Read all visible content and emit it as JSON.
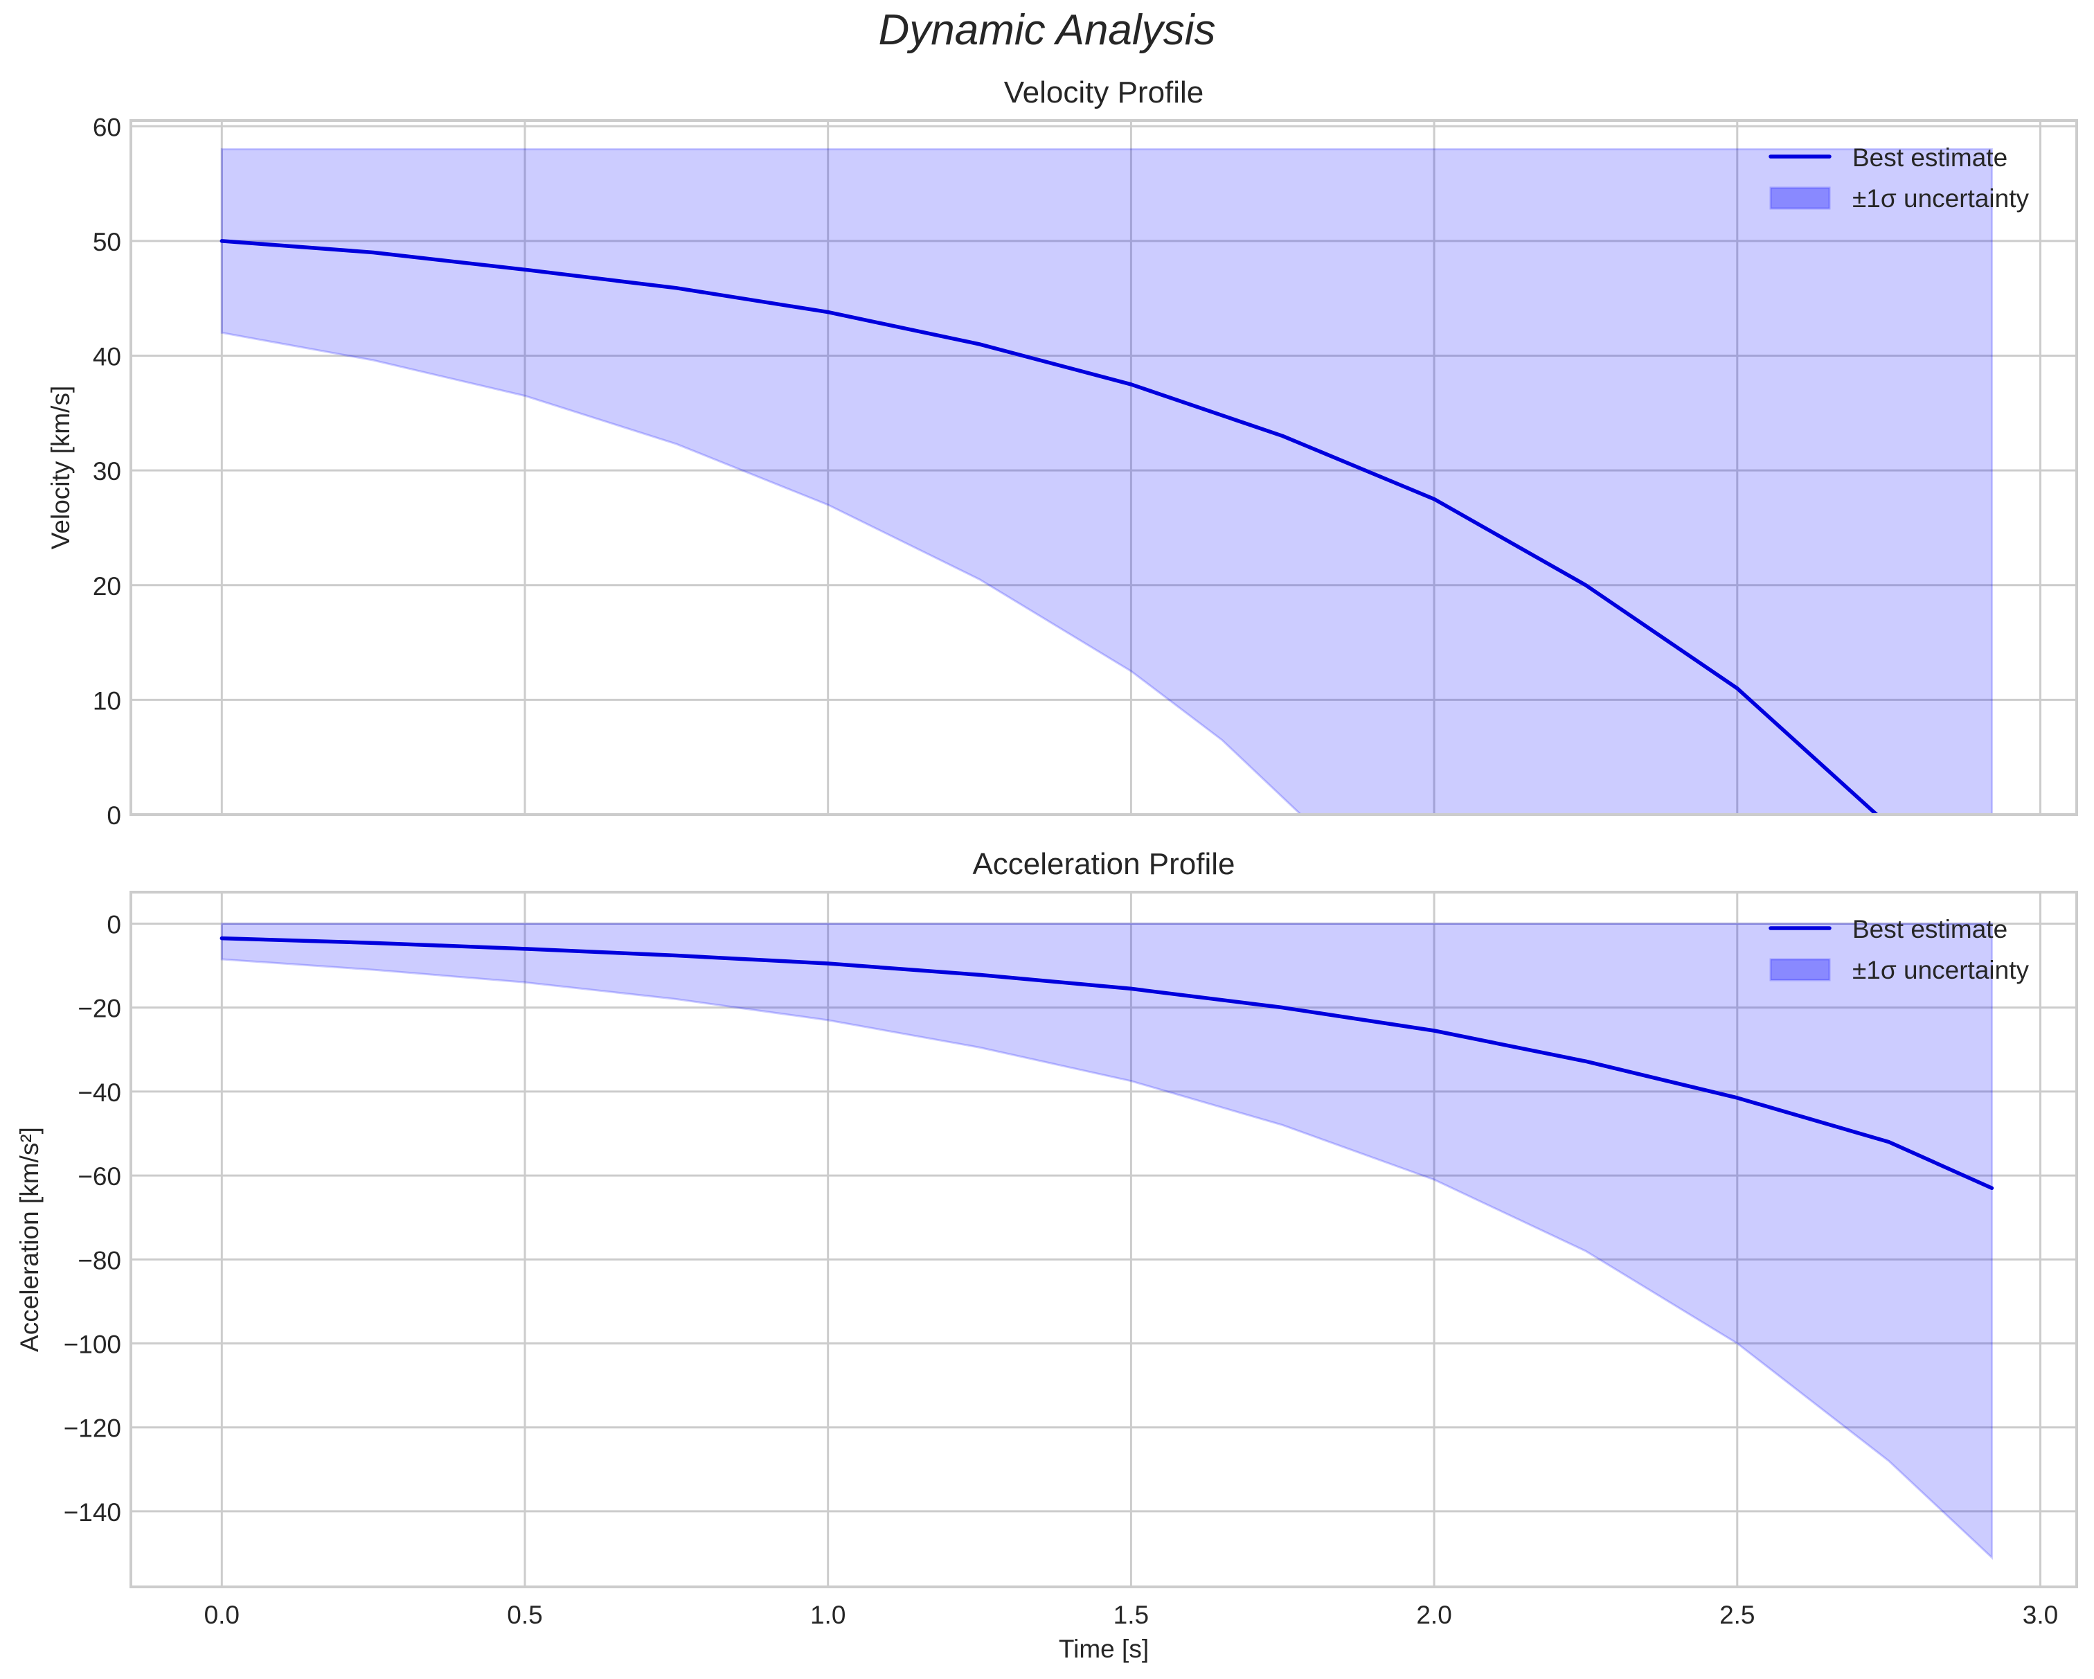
{
  "figure": {
    "suptitle": "Dynamic Analysis",
    "xlabel": "Time [s]",
    "colors": {
      "line": "#0000dd",
      "band": "#0000ff",
      "band_alpha": 0.2,
      "grid": "#cccccc",
      "text": "#262626"
    }
  },
  "chart_data": [
    {
      "type": "line",
      "title": "Velocity Profile",
      "xlabel": "",
      "ylabel": "Velocity [km/s]",
      "xlim": [
        -0.15,
        3.06
      ],
      "ylim": [
        0,
        60.5
      ],
      "xticks": [
        0.0,
        0.5,
        1.0,
        1.5,
        2.0,
        2.5,
        3.0
      ],
      "yticks": [
        0,
        10,
        20,
        30,
        40,
        50,
        60
      ],
      "grid": true,
      "legend": {
        "position": "upper right",
        "entries": [
          "Best estimate",
          "±1σ uncertainty"
        ]
      },
      "x": [
        0.0,
        0.25,
        0.5,
        0.75,
        1.0,
        1.25,
        1.5,
        1.75,
        2.0,
        2.25,
        2.5,
        2.73
      ],
      "series": [
        {
          "name": "Best estimate",
          "values": [
            50,
            49.0,
            47.5,
            45.9,
            43.8,
            41.0,
            37.5,
            33.0,
            27.5,
            20.0,
            11.0,
            0
          ]
        }
      ],
      "band": {
        "name": "±1σ uncertainty",
        "x": [
          0.0,
          0.25,
          0.5,
          0.75,
          1.0,
          1.25,
          1.5,
          1.65,
          1.78,
          2.0,
          2.5,
          2.92
        ],
        "upper": [
          58,
          58,
          58,
          58,
          58,
          58,
          58,
          58,
          58,
          58,
          58,
          58
        ],
        "lower": [
          42,
          39.6,
          36.5,
          32.3,
          27.0,
          20.5,
          12.5,
          6.5,
          0,
          0,
          0,
          0
        ]
      }
    },
    {
      "type": "line",
      "title": "Acceleration Profile",
      "xlabel": "Time [s]",
      "ylabel": "Acceleration [km/s²]",
      "xlim": [
        -0.15,
        3.06
      ],
      "ylim": [
        -158,
        7.5
      ],
      "xticks": [
        0.0,
        0.5,
        1.0,
        1.5,
        2.0,
        2.5,
        3.0
      ],
      "xticklabels": [
        "0.0",
        "0.5",
        "1.0",
        "1.5",
        "2.0",
        "2.5",
        "3.0"
      ],
      "yticks": [
        0,
        -20,
        -40,
        -60,
        -80,
        -100,
        -120,
        -140
      ],
      "yticklabels": [
        "0",
        "−20",
        "−40",
        "−60",
        "−80",
        "−100",
        "−120",
        "−140"
      ],
      "grid": true,
      "legend": {
        "position": "upper right",
        "entries": [
          "Best estimate",
          "±1σ uncertainty"
        ]
      },
      "x": [
        0.0,
        0.25,
        0.5,
        0.75,
        1.0,
        1.25,
        1.5,
        1.75,
        2.0,
        2.25,
        2.5,
        2.75,
        2.92
      ],
      "series": [
        {
          "name": "Best estimate",
          "values": [
            -3.5,
            -4.6,
            -6.0,
            -7.6,
            -9.5,
            -12.2,
            -15.5,
            -20.0,
            -25.5,
            -32.8,
            -41.5,
            -52.0,
            -63.0
          ]
        }
      ],
      "band": {
        "name": "±1σ uncertainty",
        "x": [
          0.0,
          0.25,
          0.5,
          0.75,
          1.0,
          1.25,
          1.5,
          1.75,
          2.0,
          2.25,
          2.5,
          2.75,
          2.92
        ],
        "upper": [
          0,
          0,
          0,
          0,
          0,
          0,
          0,
          0,
          0,
          0,
          0,
          0,
          0
        ],
        "lower": [
          -8.5,
          -11.0,
          -14.0,
          -18.0,
          -23.0,
          -29.5,
          -37.5,
          -48.0,
          -61.0,
          -78.0,
          -100.0,
          -128.0,
          -151.0
        ]
      }
    }
  ]
}
